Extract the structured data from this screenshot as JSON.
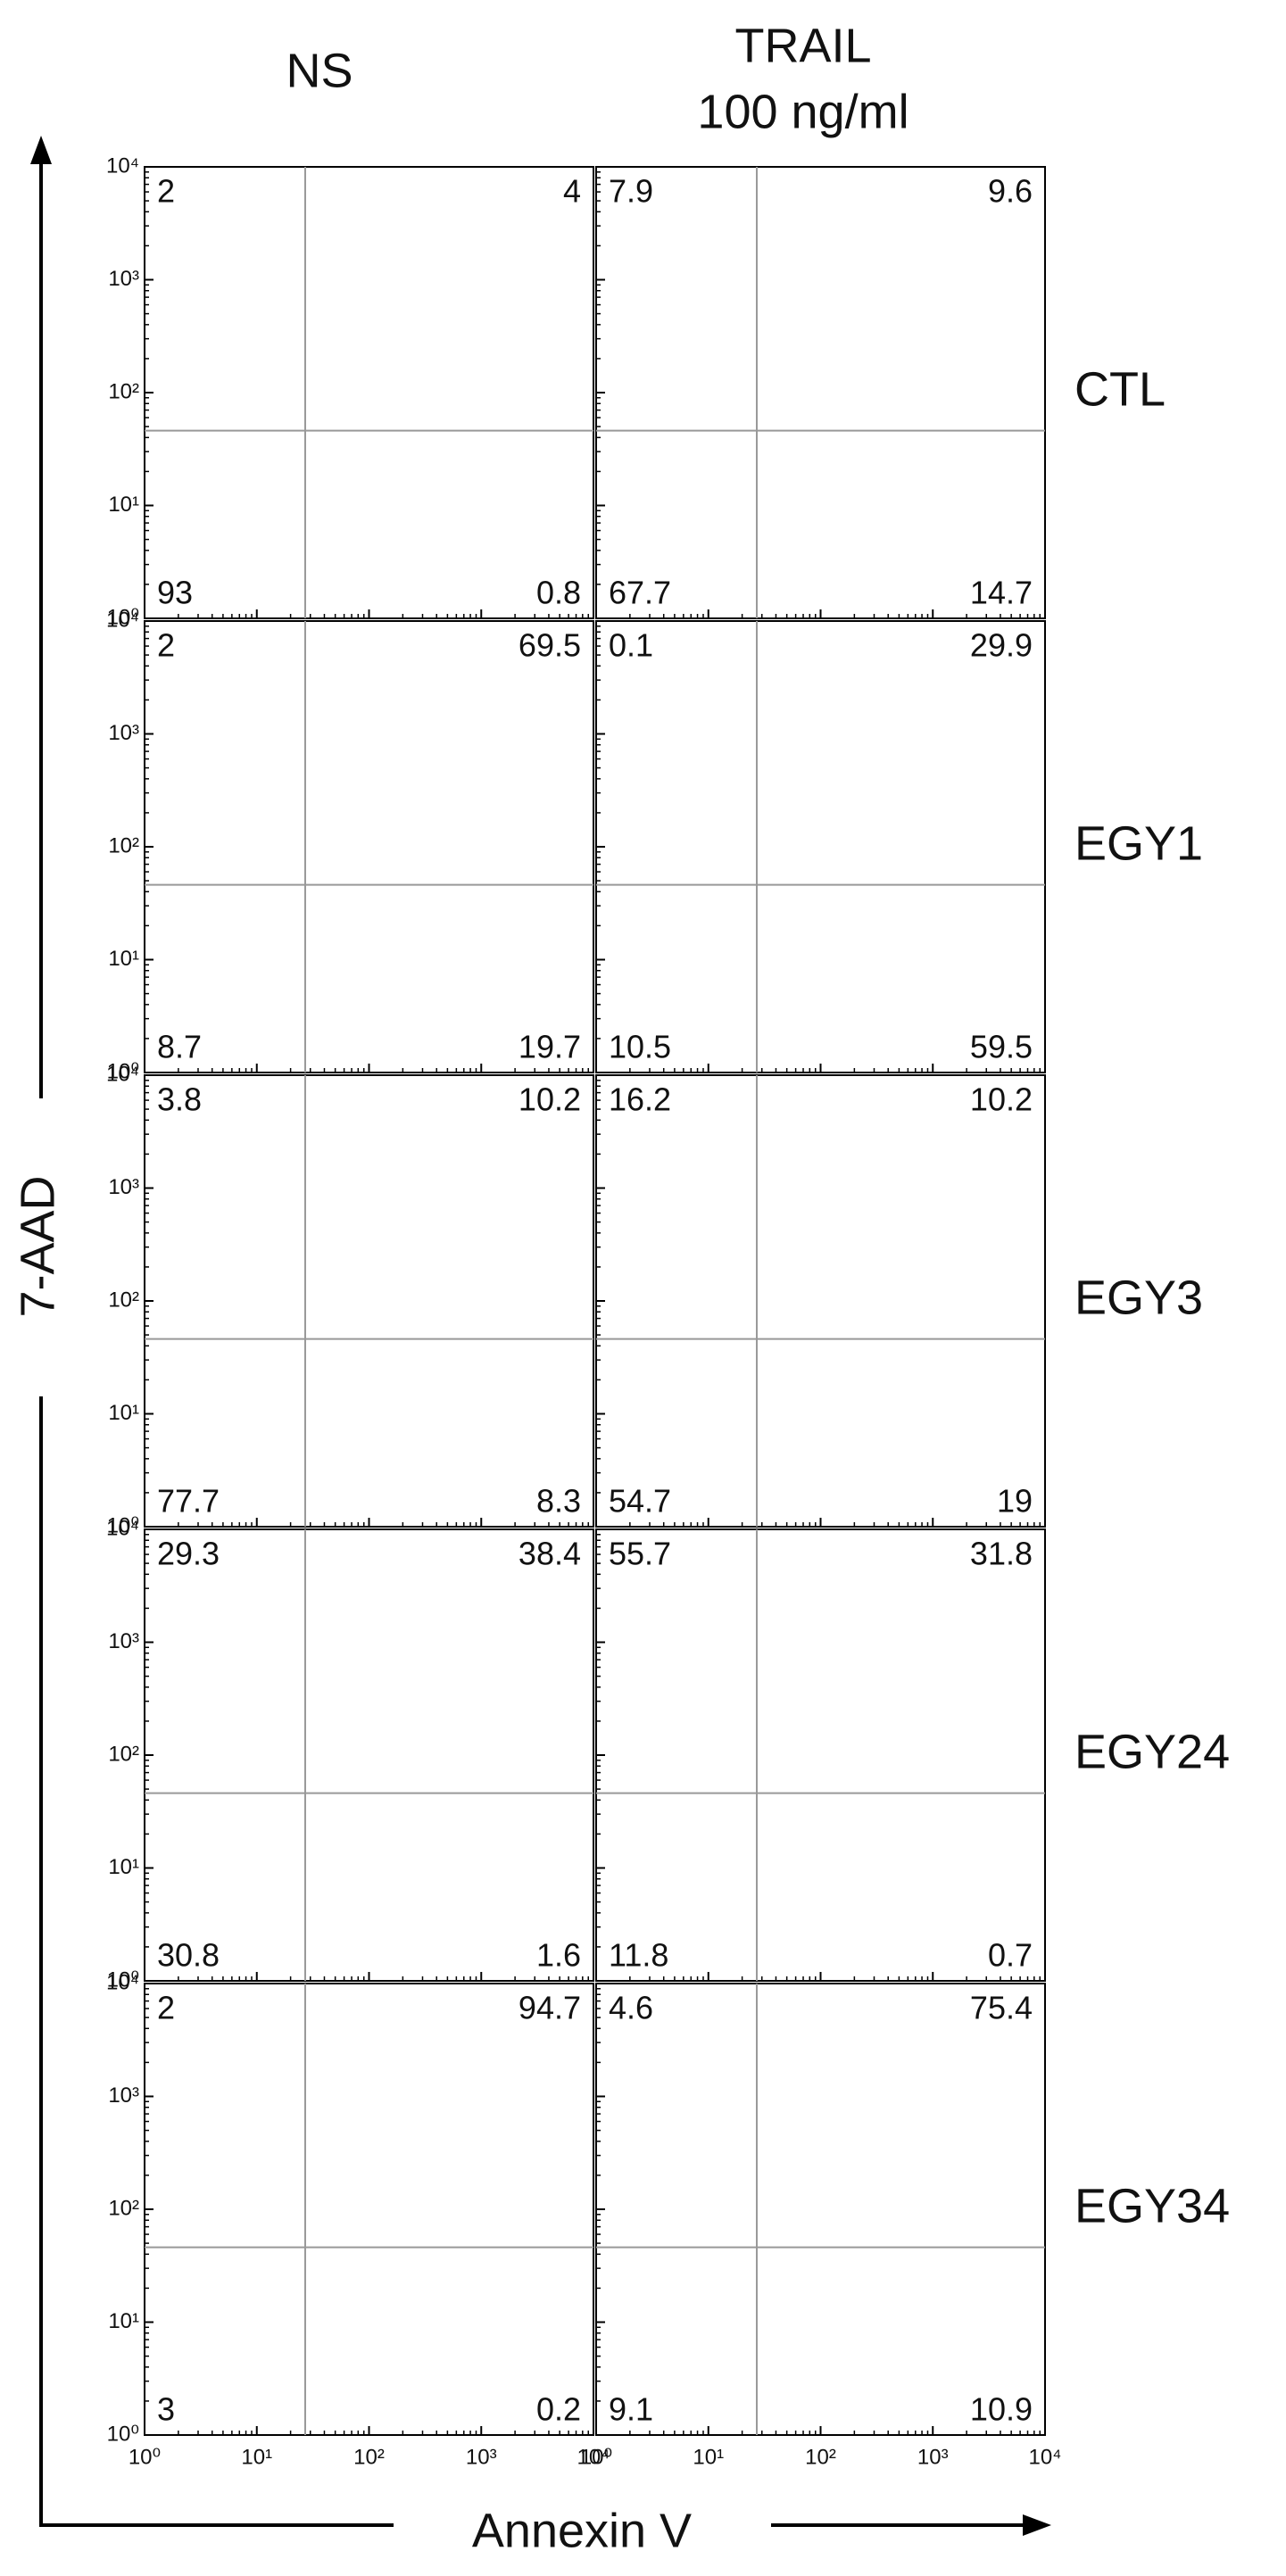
{
  "column_headers": [
    [
      "NS"
    ],
    [
      "TRAIL",
      "100 ng/ml"
    ]
  ],
  "x_label": "Annexin V",
  "y_label": "7-AAD",
  "axes": {
    "log": true,
    "xlim": [
      1,
      10000
    ],
    "ylim": [
      1,
      10000
    ],
    "ticks": [
      {
        "value": 1,
        "label": "10⁰"
      },
      {
        "value": 10,
        "label": "10¹"
      },
      {
        "value": 100,
        "label": "10²"
      },
      {
        "value": 1000,
        "label": "10³"
      },
      {
        "value": 10000,
        "label": "10⁴"
      }
    ]
  },
  "gate": {
    "x": 27,
    "y": 46
  },
  "rows": [
    {
      "label": "CTL",
      "panels": [
        {
          "upper_left": 2,
          "upper_right": 4,
          "lower_left": 93,
          "lower_right": 0.8
        },
        {
          "upper_left": 7.9,
          "upper_right": 9.6,
          "lower_left": 67.7,
          "lower_right": 14.7
        }
      ]
    },
    {
      "label": "EGY1",
      "panels": [
        {
          "upper_left": 2,
          "upper_right": 69.5,
          "lower_left": 8.7,
          "lower_right": 19.7
        },
        {
          "upper_left": 0.1,
          "upper_right": 29.9,
          "lower_left": 10.5,
          "lower_right": 59.5
        }
      ]
    },
    {
      "label": "EGY3",
      "panels": [
        {
          "upper_left": 3.8,
          "upper_right": 10.2,
          "lower_left": 77.7,
          "lower_right": 8.3
        },
        {
          "upper_left": 16.2,
          "upper_right": 10.2,
          "lower_left": 54.7,
          "lower_right": 19
        }
      ]
    },
    {
      "label": "EGY24",
      "panels": [
        {
          "upper_left": 29.3,
          "upper_right": 38.4,
          "lower_left": 30.8,
          "lower_right": 1.6
        },
        {
          "upper_left": 55.7,
          "upper_right": 31.8,
          "lower_left": 11.8,
          "lower_right": 0.7
        }
      ]
    },
    {
      "label": "EGY34",
      "panels": [
        {
          "upper_left": 2,
          "upper_right": 94.7,
          "lower_left": 3,
          "lower_right": 0.2
        },
        {
          "upper_left": 4.6,
          "upper_right": 75.4,
          "lower_left": 9.1,
          "lower_right": 10.9
        }
      ]
    }
  ]
}
